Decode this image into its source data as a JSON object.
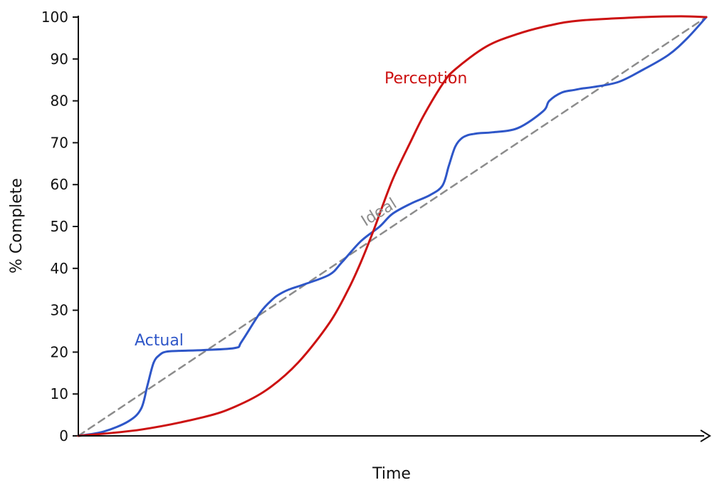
{
  "chart_data": {
    "type": "line",
    "title": "",
    "xlabel": "Time",
    "ylabel": "% Complete",
    "xlim": [
      0,
      100
    ],
    "ylim": [
      0,
      100
    ],
    "yticks": [
      0,
      10,
      20,
      30,
      40,
      50,
      60,
      70,
      80,
      90,
      100
    ],
    "ytick_labels": [
      "0",
      "10",
      "20",
      "30",
      "40",
      "50",
      "60",
      "70",
      "80",
      "90",
      "100"
    ],
    "grid": false,
    "legend": "none",
    "series": [
      {
        "name": "Ideal",
        "label": "Ideal",
        "color": "#8c8c8c",
        "style": "dashed",
        "x": [
          0,
          100
        ],
        "y": [
          0,
          100
        ]
      },
      {
        "name": "Actual",
        "label": "Actual",
        "color": "#2e56c8",
        "style": "solid",
        "x": [
          0,
          4,
          8,
          10,
          11,
          12,
          13,
          14,
          16,
          20,
          25,
          26,
          29,
          31,
          32,
          33,
          34,
          36,
          40,
          42,
          45,
          48,
          50,
          53,
          56,
          58,
          59,
          60,
          61,
          62,
          63,
          64,
          66,
          70,
          74,
          75,
          77,
          79,
          80,
          82,
          86,
          90,
          94,
          97,
          100
        ],
        "y": [
          0,
          1,
          3.5,
          6.5,
          12,
          17.5,
          19.4,
          20.1,
          20.3,
          20.5,
          21,
          22.5,
          29.5,
          32.7,
          33.8,
          34.6,
          35.2,
          36.2,
          38.5,
          41.5,
          46.5,
          50,
          53,
          55.5,
          57.5,
          59.8,
          64.5,
          69,
          71,
          71.8,
          72.1,
          72.3,
          72.5,
          73.5,
          77.5,
          80,
          82,
          82.6,
          82.9,
          83.3,
          84.5,
          87.5,
          91,
          95,
          100
        ]
      },
      {
        "name": "Perception",
        "label": "Perception",
        "color": "#cc1111",
        "style": "solid",
        "x": [
          0,
          10,
          20,
          25,
          30,
          35,
          40,
          43,
          45,
          47,
          50,
          53,
          55,
          58,
          60,
          65,
          70,
          75,
          80,
          90,
          96,
          100
        ],
        "y": [
          0,
          1.5,
          4.5,
          7,
          11,
          17.5,
          27,
          35,
          41.5,
          49,
          61,
          70.5,
          76.5,
          84,
          87.5,
          93,
          96,
          98,
          99.2,
          100,
          100.2,
          100
        ]
      }
    ],
    "annotations": []
  }
}
